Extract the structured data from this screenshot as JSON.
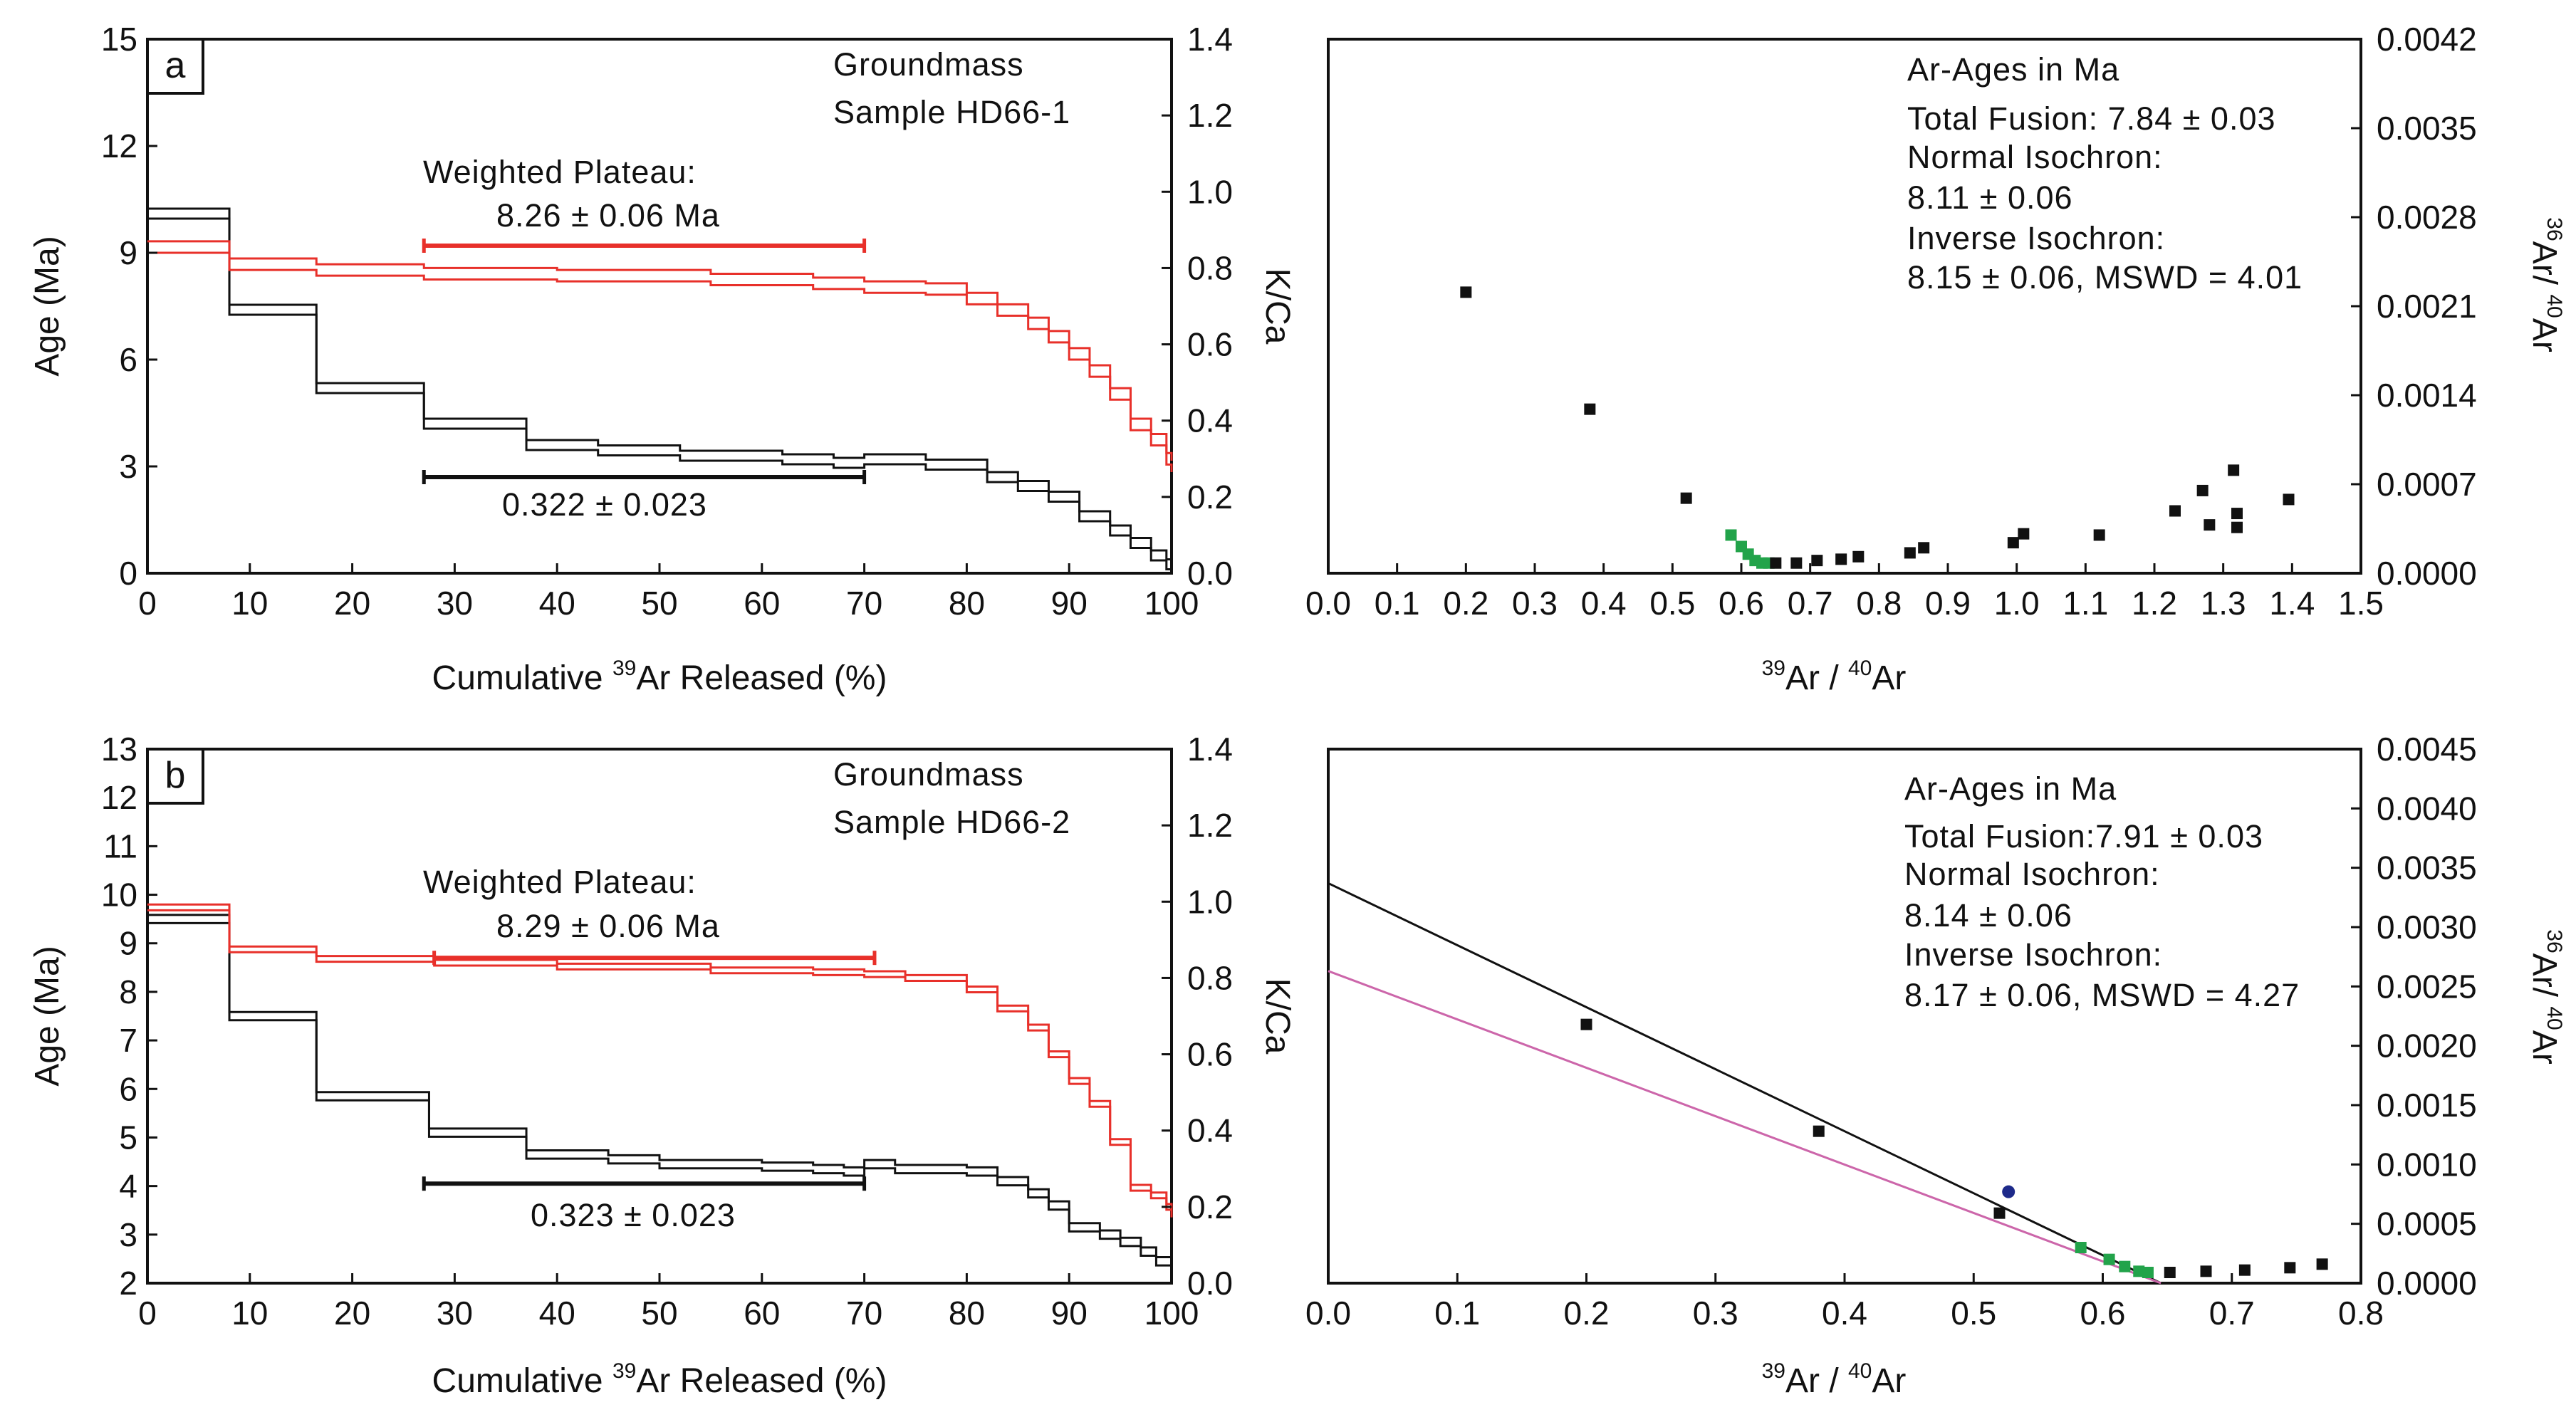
{
  "colors": {
    "age": "#111111",
    "kca": "#e8302a",
    "iso_green": "#22a34a",
    "iso_blue": "#1d2a8a",
    "fit_black": "#111111",
    "fit_magenta": "#cc66aa"
  },
  "chart_data": [
    {
      "type": "line",
      "panel": "a",
      "title": "Groundmass",
      "subtitle": "Sample HD66-1",
      "xlabel_pre": "Cumulative ",
      "xlabel_sup": "39",
      "xlabel_post": "Ar Released (%)",
      "ylabel": "Age (Ma)",
      "y2label": "K/Ca",
      "xlim": [
        0,
        100
      ],
      "ylim": [
        0,
        15
      ],
      "y2lim": [
        0,
        1.4
      ],
      "xticks": [
        "0",
        "10",
        "20",
        "30",
        "40",
        "50",
        "60",
        "70",
        "80",
        "90",
        "100"
      ],
      "yticks": [
        "0",
        "3",
        "6",
        "9",
        "12",
        "15"
      ],
      "y2ticks": [
        "0.0",
        "0.2",
        "0.4",
        "0.6",
        "0.8",
        "1.0",
        "1.2",
        "1.4"
      ],
      "plateau_label": "Weighted Plateau:",
      "plateau_value": "8.26 ± 0.06 Ma",
      "plateau_range": [
        27,
        70
      ],
      "plateau_age": 9.2,
      "kca_label": "0.322 ± 0.023",
      "kca_range": [
        27,
        70
      ],
      "kca_age": 2.7,
      "series": [
        {
          "name": "Age spectrum",
          "color": "age",
          "offset": 0.28,
          "values": [
            [
              0,
              10.1
            ],
            [
              8,
              7.4
            ],
            [
              16.5,
              5.2
            ],
            [
              27,
              4.2
            ],
            [
              37,
              3.6
            ],
            [
              44,
              3.45
            ],
            [
              52,
              3.3
            ],
            [
              62,
              3.2
            ],
            [
              67,
              3.1
            ],
            [
              70,
              3.2
            ],
            [
              76,
              3.05
            ],
            [
              82,
              2.7
            ],
            [
              85,
              2.45
            ],
            [
              88,
              2.15
            ],
            [
              91,
              1.6
            ],
            [
              94,
              1.2
            ],
            [
              96,
              0.85
            ],
            [
              98,
              0.5
            ],
            [
              99.5,
              0.25
            ],
            [
              100,
              0.1
            ]
          ]
        },
        {
          "name": "K/Ca spectrum",
          "color": "kca",
          "offset": 0.03,
          "values": [
            [
              0,
              0.855
            ],
            [
              8,
              0.81
            ],
            [
              16.5,
              0.795
            ],
            [
              27,
              0.785
            ],
            [
              40,
              0.78
            ],
            [
              55,
              0.77
            ],
            [
              65,
              0.76
            ],
            [
              70,
              0.75
            ],
            [
              76,
              0.745
            ],
            [
              80,
              0.72
            ],
            [
              83,
              0.69
            ],
            [
              86,
              0.655
            ],
            [
              88,
              0.62
            ],
            [
              90,
              0.575
            ],
            [
              92,
              0.53
            ],
            [
              94,
              0.47
            ],
            [
              96,
              0.39
            ],
            [
              98,
              0.35
            ],
            [
              99.5,
              0.3
            ],
            [
              100,
              0.28
            ]
          ]
        }
      ]
    },
    {
      "type": "scatter",
      "panel": "a-iso",
      "xlabel_sup1": "39",
      "xlabel_mid": "Ar / ",
      "xlabel_sup2": "40",
      "xlabel_post": "Ar",
      "ylabel_sup1": "36",
      "ylabel_mid": "Ar/ ",
      "ylabel_sup2": "40",
      "ylabel_post": "Ar",
      "xlim": [
        0,
        1.5
      ],
      "ylim": [
        0,
        0.0042
      ],
      "xticks": [
        "0.0",
        "0.1",
        "0.2",
        "0.3",
        "0.4",
        "0.5",
        "0.6",
        "0.7",
        "0.8",
        "0.9",
        "1.0",
        "1.1",
        "1.2",
        "1.3",
        "1.4",
        "1.5"
      ],
      "yticks": [
        "0.0000",
        "0.0007",
        "0.0014",
        "0.0021",
        "0.0028",
        "0.0035",
        "0.0042"
      ],
      "info": [
        "Ar-Ages in Ma",
        "Total Fusion:  7.84  ± 0.03",
        "Normal Isochron:",
        "8.11  ± 0.06",
        "Inverse Isochron:",
        "8.15  ± 0.06, MSWD  = 4.01"
      ],
      "points": [
        {
          "x": 0.2,
          "y": 0.00221,
          "c": "k"
        },
        {
          "x": 0.38,
          "y": 0.00129,
          "c": "k"
        },
        {
          "x": 0.52,
          "y": 0.00059,
          "c": "k"
        },
        {
          "x": 0.585,
          "y": 0.0003,
          "c": "g"
        },
        {
          "x": 0.6,
          "y": 0.00021,
          "c": "g"
        },
        {
          "x": 0.61,
          "y": 0.00015,
          "c": "g"
        },
        {
          "x": 0.62,
          "y": 0.0001,
          "c": "g"
        },
        {
          "x": 0.63,
          "y": 8e-05,
          "c": "g"
        },
        {
          "x": 0.64,
          "y": 8e-05,
          "c": "g"
        },
        {
          "x": 0.65,
          "y": 8e-05,
          "c": "k"
        },
        {
          "x": 0.68,
          "y": 8e-05,
          "c": "k"
        },
        {
          "x": 0.71,
          "y": 0.0001,
          "c": "k"
        },
        {
          "x": 0.745,
          "y": 0.00011,
          "c": "k"
        },
        {
          "x": 0.77,
          "y": 0.00013,
          "c": "k"
        },
        {
          "x": 0.845,
          "y": 0.00016,
          "c": "k"
        },
        {
          "x": 0.865,
          "y": 0.0002,
          "c": "k"
        },
        {
          "x": 0.995,
          "y": 0.00024,
          "c": "k"
        },
        {
          "x": 1.01,
          "y": 0.00031,
          "c": "k"
        },
        {
          "x": 1.12,
          "y": 0.0003,
          "c": "k"
        },
        {
          "x": 1.23,
          "y": 0.00049,
          "c": "k"
        },
        {
          "x": 1.27,
          "y": 0.00065,
          "c": "k"
        },
        {
          "x": 1.28,
          "y": 0.00038,
          "c": "k"
        },
        {
          "x": 1.315,
          "y": 0.00081,
          "c": "k"
        },
        {
          "x": 1.32,
          "y": 0.00047,
          "c": "k"
        },
        {
          "x": 1.32,
          "y": 0.00036,
          "c": "k"
        },
        {
          "x": 1.395,
          "y": 0.00058,
          "c": "k"
        }
      ]
    },
    {
      "type": "line",
      "panel": "b",
      "title": "Groundmass",
      "subtitle": "Sample HD66-2",
      "xlabel_pre": "Cumulative ",
      "xlabel_sup": "39",
      "xlabel_post": "Ar Released (%)",
      "ylabel": "Age (Ma)",
      "y2label": "K/Ca",
      "xlim": [
        0,
        100
      ],
      "ylim": [
        2,
        13
      ],
      "y2lim": [
        0,
        1.4
      ],
      "xticks": [
        "0",
        "10",
        "20",
        "30",
        "40",
        "50",
        "60",
        "70",
        "80",
        "90",
        "100"
      ],
      "yticks": [
        "2",
        "3",
        "4",
        "5",
        "6",
        "7",
        "8",
        "9",
        "10",
        "11",
        "12",
        "13"
      ],
      "y2ticks": [
        "0.0",
        "0.2",
        "0.4",
        "0.6",
        "0.8",
        "1.0",
        "1.2",
        "1.4"
      ],
      "plateau_label": "Weighted Plateau:",
      "plateau_value": "8.29 ± 0.06 Ma",
      "plateau_range": [
        28,
        71
      ],
      "plateau_age": 8.7,
      "kca_label": "0.323 ± 0.023",
      "kca_range": [
        27,
        70
      ],
      "kca_age": 4.05,
      "series": [
        {
          "name": "Age spectrum",
          "color": "age",
          "offset": 0.17,
          "values": [
            [
              0,
              9.5
            ],
            [
              8,
              7.5
            ],
            [
              16.5,
              5.85
            ],
            [
              27.5,
              5.1
            ],
            [
              37,
              4.65
            ],
            [
              45,
              4.55
            ],
            [
              50,
              4.45
            ],
            [
              60,
              4.4
            ],
            [
              65,
              4.35
            ],
            [
              68,
              4.3
            ],
            [
              70,
              4.45
            ],
            [
              73,
              4.35
            ],
            [
              80,
              4.3
            ],
            [
              83,
              4.1
            ],
            [
              86,
              3.85
            ],
            [
              88,
              3.6
            ],
            [
              90,
              3.15
            ],
            [
              93,
              3.0
            ],
            [
              95,
              2.85
            ],
            [
              97,
              2.65
            ],
            [
              98.5,
              2.45
            ],
            [
              100,
              2.3
            ]
          ]
        },
        {
          "name": "K/Ca spectrum",
          "color": "kca",
          "offset": 0.015,
          "values": [
            [
              0,
              0.985
            ],
            [
              8,
              0.875
            ],
            [
              16.5,
              0.85
            ],
            [
              28,
              0.84
            ],
            [
              40,
              0.83
            ],
            [
              55,
              0.82
            ],
            [
              65,
              0.815
            ],
            [
              70,
              0.81
            ],
            [
              74,
              0.8
            ],
            [
              80,
              0.77
            ],
            [
              83,
              0.72
            ],
            [
              86,
              0.67
            ],
            [
              88,
              0.6
            ],
            [
              90,
              0.53
            ],
            [
              92,
              0.47
            ],
            [
              94,
              0.37
            ],
            [
              96,
              0.25
            ],
            [
              98,
              0.23
            ],
            [
              99.5,
              0.2
            ],
            [
              100,
              0.18
            ]
          ]
        }
      ]
    },
    {
      "type": "scatter",
      "panel": "b-iso",
      "xlabel_sup1": "39",
      "xlabel_mid": "Ar / ",
      "xlabel_sup2": "40",
      "xlabel_post": "Ar",
      "ylabel_sup1": "36",
      "ylabel_mid": "Ar/ ",
      "ylabel_sup2": "40",
      "ylabel_post": "Ar",
      "xlim": [
        0,
        0.8
      ],
      "ylim": [
        0,
        0.0045
      ],
      "xticks": [
        "0.0",
        "0.1",
        "0.2",
        "0.3",
        "0.4",
        "0.5",
        "0.6",
        "0.7",
        "0.8"
      ],
      "yticks": [
        "0.0000",
        "0.0005",
        "0.0010",
        "0.0015",
        "0.0020",
        "0.0025",
        "0.0030",
        "0.0035",
        "0.0040",
        "0.0045"
      ],
      "info": [
        "Ar-Ages in Ma",
        "Total Fusion:7.91  ± 0.03",
        "Normal Isochron:",
        "8.14  ± 0.06",
        "Inverse Isochron:",
        "8.17  ± 0.06, MSWD  = 4.27"
      ],
      "fits": [
        {
          "color": "fit_black",
          "x0": 0.0,
          "y0": 0.00337,
          "x1": 0.645,
          "y1": 0.0
        },
        {
          "color": "fit_magenta",
          "x0": 0.0,
          "y0": 0.00263,
          "x1": 0.645,
          "y1": 0.0
        }
      ],
      "points": [
        {
          "x": 0.2,
          "y": 0.00218,
          "c": "k"
        },
        {
          "x": 0.38,
          "y": 0.00128,
          "c": "k"
        },
        {
          "x": 0.52,
          "y": 0.00059,
          "c": "k"
        },
        {
          "x": 0.527,
          "y": 0.00077,
          "c": "b"
        },
        {
          "x": 0.583,
          "y": 0.0003,
          "c": "g"
        },
        {
          "x": 0.605,
          "y": 0.0002,
          "c": "g"
        },
        {
          "x": 0.617,
          "y": 0.00014,
          "c": "g"
        },
        {
          "x": 0.628,
          "y": 0.0001,
          "c": "g"
        },
        {
          "x": 0.635,
          "y": 9e-05,
          "c": "g"
        },
        {
          "x": 0.652,
          "y": 9e-05,
          "c": "k"
        },
        {
          "x": 0.68,
          "y": 0.0001,
          "c": "k"
        },
        {
          "x": 0.71,
          "y": 0.00011,
          "c": "k"
        },
        {
          "x": 0.745,
          "y": 0.00013,
          "c": "k"
        },
        {
          "x": 0.77,
          "y": 0.00016,
          "c": "k"
        }
      ]
    }
  ]
}
